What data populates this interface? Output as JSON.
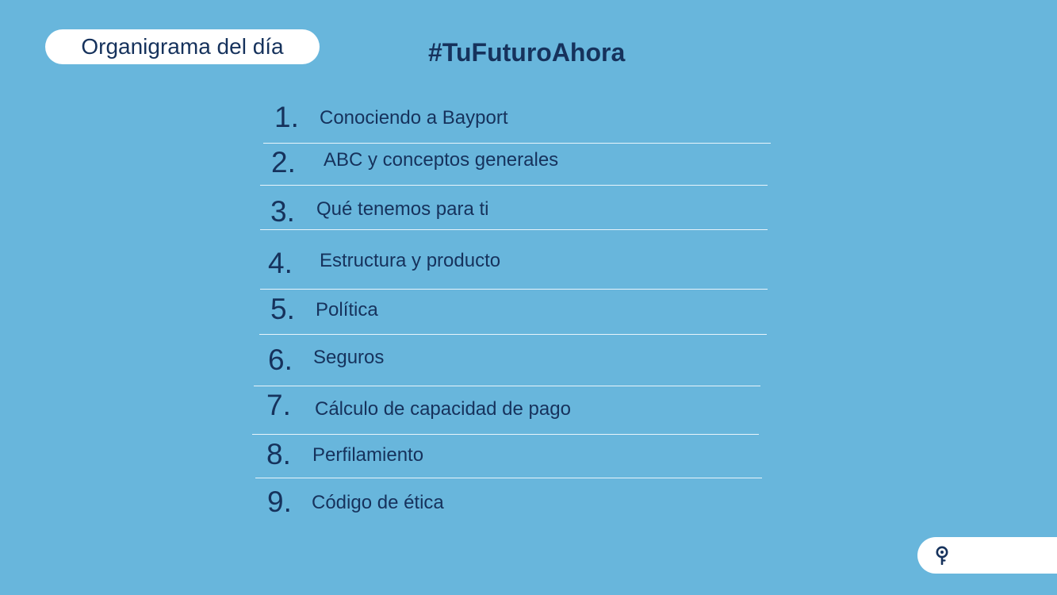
{
  "header": {
    "section_label": "Organigrama del día",
    "hashtag": "#TuFuturoAhora"
  },
  "agenda": [
    {
      "number": "1.",
      "label": "Conociendo a Bayport"
    },
    {
      "number": "2.",
      "label": "ABC y conceptos generales"
    },
    {
      "number": "3.",
      "label": "Qué tenemos para ti"
    },
    {
      "number": "4.",
      "label": "Estructura y producto"
    },
    {
      "number": "5.",
      "label": "Política"
    },
    {
      "number": "6.",
      "label": "Seguros"
    },
    {
      "number": "7.",
      "label": "Cálculo de capacidad de pago"
    },
    {
      "number": "8.",
      "label": "Perfilamiento"
    },
    {
      "number": "9.",
      "label": "Código de ética"
    }
  ],
  "footer": {
    "logo_icon": "pin-icon"
  },
  "colors": {
    "background": "#68b6dc",
    "text": "#16325c",
    "pill": "#ffffff",
    "divider": "#e8f4fb"
  }
}
